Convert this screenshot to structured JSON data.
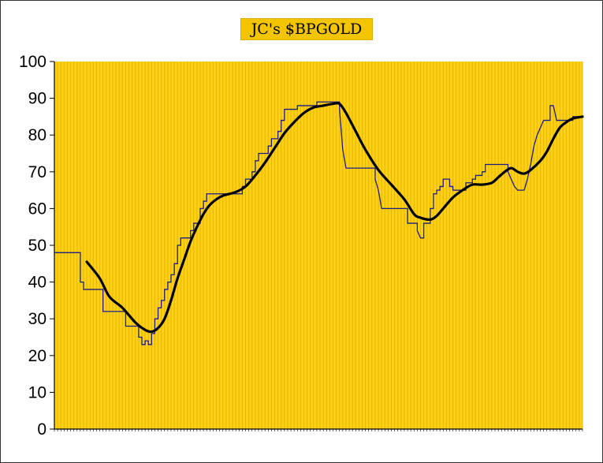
{
  "colors": {
    "plot_background": "#fcd116",
    "gridline": "#e8b400",
    "title_background": "#f2c500",
    "price_line": "#1c1c80",
    "smoothed_line": "#000000"
  },
  "chart_data": {
    "type": "line",
    "title": "JC's $BPGOLD",
    "xlabel": "",
    "ylabel": "",
    "ylim": [
      0,
      100
    ],
    "yticks": [
      0,
      10,
      20,
      30,
      40,
      50,
      60,
      70,
      80,
      90,
      100
    ],
    "x_tick_labels_note": "x-axis tick labels are too small to read",
    "grid": "vertical lines only",
    "legend": "none",
    "series": [
      {
        "style": "thin step line",
        "points": [
          [
            0,
            48
          ],
          [
            8,
            48
          ],
          [
            8,
            40
          ],
          [
            9,
            40
          ],
          [
            9,
            38
          ],
          [
            15,
            38
          ],
          [
            15,
            32
          ],
          [
            22,
            32
          ],
          [
            22,
            28
          ],
          [
            26,
            28
          ],
          [
            26,
            25
          ],
          [
            27,
            25
          ],
          [
            27,
            23
          ],
          [
            28,
            23
          ],
          [
            28,
            24
          ],
          [
            29,
            24
          ],
          [
            29,
            23
          ],
          [
            30,
            23
          ],
          [
            30,
            26
          ],
          [
            31,
            26
          ],
          [
            31,
            30
          ],
          [
            32,
            30
          ],
          [
            32,
            33
          ],
          [
            33,
            33
          ],
          [
            33,
            35
          ],
          [
            34,
            35
          ],
          [
            34,
            38
          ],
          [
            35,
            38
          ],
          [
            35,
            40
          ],
          [
            36,
            40
          ],
          [
            36,
            42
          ],
          [
            37,
            42
          ],
          [
            37,
            45
          ],
          [
            38,
            45
          ],
          [
            38,
            50
          ],
          [
            39,
            50
          ],
          [
            39,
            52
          ],
          [
            42,
            52
          ],
          [
            42,
            54
          ],
          [
            43,
            54
          ],
          [
            43,
            56
          ],
          [
            45,
            56
          ],
          [
            45,
            60
          ],
          [
            46,
            60
          ],
          [
            46,
            62
          ],
          [
            47,
            62
          ],
          [
            47,
            64
          ],
          [
            58,
            64
          ],
          [
            58,
            66
          ],
          [
            59,
            66
          ],
          [
            59,
            68
          ],
          [
            61,
            68
          ],
          [
            61,
            70
          ],
          [
            62,
            70
          ],
          [
            62,
            73
          ],
          [
            63,
            73
          ],
          [
            63,
            75
          ],
          [
            66,
            75
          ],
          [
            66,
            77
          ],
          [
            67,
            77
          ],
          [
            67,
            79
          ],
          [
            69,
            79
          ],
          [
            69,
            81
          ],
          [
            70,
            81
          ],
          [
            70,
            84
          ],
          [
            71,
            84
          ],
          [
            71,
            87
          ],
          [
            75,
            87
          ],
          [
            75,
            88
          ],
          [
            81,
            88
          ],
          [
            81,
            89
          ],
          [
            88,
            89
          ],
          [
            88,
            87
          ],
          [
            89,
            76
          ],
          [
            90,
            71
          ],
          [
            99,
            71
          ],
          [
            99,
            68
          ],
          [
            100,
            65
          ],
          [
            101,
            60
          ],
          [
            109,
            60
          ],
          [
            109,
            56
          ],
          [
            112,
            56
          ],
          [
            112,
            54
          ],
          [
            113,
            52
          ],
          [
            114,
            52
          ],
          [
            114,
            56
          ],
          [
            116,
            56
          ],
          [
            116,
            60
          ],
          [
            117,
            60
          ],
          [
            117,
            64
          ],
          [
            118,
            64
          ],
          [
            118,
            65
          ],
          [
            119,
            65
          ],
          [
            119,
            66
          ],
          [
            120,
            66
          ],
          [
            120,
            68
          ],
          [
            122,
            68
          ],
          [
            122,
            66
          ],
          [
            123,
            66
          ],
          [
            123,
            65
          ],
          [
            127,
            65
          ],
          [
            127,
            67
          ],
          [
            129,
            67
          ],
          [
            129,
            68
          ],
          [
            130,
            68
          ],
          [
            130,
            69
          ],
          [
            132,
            69
          ],
          [
            132,
            70
          ],
          [
            133,
            70
          ],
          [
            133,
            72
          ],
          [
            140,
            72
          ],
          [
            140,
            70
          ],
          [
            141,
            68
          ],
          [
            142,
            66
          ],
          [
            143,
            65
          ],
          [
            145,
            65
          ],
          [
            146,
            68
          ],
          [
            147,
            72
          ],
          [
            148,
            77
          ],
          [
            149,
            80
          ],
          [
            150,
            82
          ],
          [
            151,
            84
          ],
          [
            153,
            84
          ],
          [
            153,
            88
          ],
          [
            154,
            88
          ],
          [
            155,
            84
          ],
          [
            160,
            84
          ],
          [
            160,
            85
          ],
          [
            163,
            85
          ]
        ]
      },
      {
        "style": "thick smoothed line",
        "points": [
          [
            10,
            45.5
          ],
          [
            14,
            41
          ],
          [
            17,
            36
          ],
          [
            21,
            33
          ],
          [
            25,
            29
          ],
          [
            28,
            27
          ],
          [
            30,
            26.5
          ],
          [
            32,
            27.5
          ],
          [
            34,
            30
          ],
          [
            36,
            35
          ],
          [
            38,
            41
          ],
          [
            40,
            46
          ],
          [
            42,
            51
          ],
          [
            44,
            55
          ],
          [
            46,
            58.5
          ],
          [
            48,
            61
          ],
          [
            50,
            62.5
          ],
          [
            52,
            63.5
          ],
          [
            56,
            64.5
          ],
          [
            59,
            66
          ],
          [
            62,
            69
          ],
          [
            65,
            72.5
          ],
          [
            68,
            76.5
          ],
          [
            71,
            80.5
          ],
          [
            74,
            83.5
          ],
          [
            77,
            86
          ],
          [
            80,
            87.5
          ],
          [
            83,
            88
          ],
          [
            86,
            88.5
          ],
          [
            88,
            88.5
          ],
          [
            90,
            86
          ],
          [
            93,
            81
          ],
          [
            96,
            76
          ],
          [
            100,
            70.5
          ],
          [
            104,
            66.5
          ],
          [
            108,
            62.5
          ],
          [
            111,
            58.5
          ],
          [
            113,
            57.5
          ],
          [
            116,
            57
          ],
          [
            118,
            58
          ],
          [
            120,
            60
          ],
          [
            123,
            63
          ],
          [
            126,
            65
          ],
          [
            129,
            66.5
          ],
          [
            132,
            66.5
          ],
          [
            135,
            67
          ],
          [
            137,
            68.5
          ],
          [
            139,
            70
          ],
          [
            141,
            71
          ],
          [
            143,
            70
          ],
          [
            145,
            69.5
          ],
          [
            147,
            70.5
          ],
          [
            150,
            73
          ],
          [
            152,
            75.5
          ],
          [
            154,
            79
          ],
          [
            156,
            82
          ],
          [
            158,
            83.5
          ],
          [
            160,
            84.5
          ],
          [
            163,
            85
          ]
        ],
        "x_range": [
          0,
          163
        ]
      }
    ]
  }
}
